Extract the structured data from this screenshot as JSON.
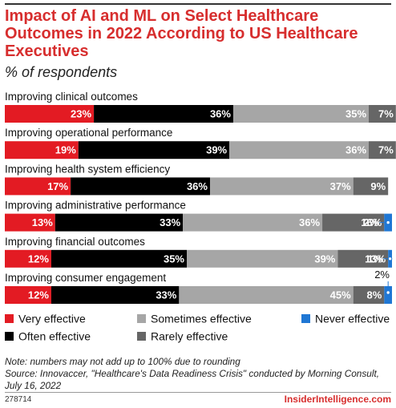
{
  "chart_data": {
    "type": "bar",
    "stacked": true,
    "orientation": "horizontal",
    "title": "Impact of AI and ML on Select Healthcare Outcomes in 2022 According to US Healthcare Executives",
    "subtitle": "% of respondents",
    "categories": [
      "Improving clinical outcomes",
      "Improving operational performance",
      "Improving health system efficiency",
      "Improving administrative performance",
      "Improving financial outcomes",
      "Improving consumer engagement"
    ],
    "series": [
      {
        "name": "Very effective",
        "color": "#e31b23",
        "values": [
          23,
          19,
          17,
          13,
          12,
          12
        ]
      },
      {
        "name": "Often effective",
        "color": "#000000",
        "values": [
          36,
          39,
          36,
          33,
          35,
          33
        ]
      },
      {
        "name": "Sometimes effective",
        "color": "#a6a6a6",
        "values": [
          35,
          36,
          37,
          36,
          39,
          45
        ]
      },
      {
        "name": "Rarely effective",
        "color": "#666666",
        "values": [
          7,
          7,
          9,
          16,
          13,
          8
        ]
      },
      {
        "name": "Never effective",
        "color": "#1f77d4",
        "values": [
          null,
          null,
          null,
          2,
          1,
          2
        ]
      }
    ],
    "xlim": [
      0,
      100
    ],
    "legend_position": "bottom"
  },
  "notes": {
    "line1": "Note: numbers may not add up to 100% due to rounding",
    "line2": "Source: Innovaccer, \"Healthcare's Data Readiness Crisis\" conducted by Morning Consult,",
    "line3": "July 16, 2022"
  },
  "footer": {
    "chart_id": "278714",
    "brand": "InsiderIntelligence.com"
  }
}
